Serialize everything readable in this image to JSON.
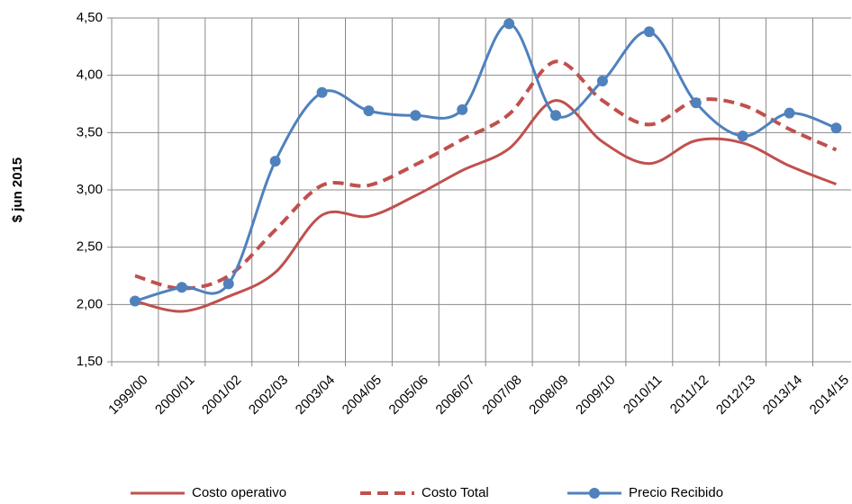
{
  "chart_data": {
    "type": "line",
    "y_label": "$ jun 2015",
    "categories": [
      "1999/00",
      "2000/01",
      "2001/02",
      "2002/03",
      "2003/04",
      "2004/05",
      "2005/06",
      "2006/07",
      "2007/08",
      "2008/09",
      "2009/10",
      "2010/11",
      "2011/12",
      "2012/13",
      "2013/14",
      "2014/15"
    ],
    "series": [
      {
        "name": "Costo operativo",
        "color": "#c0504d",
        "style": "solid",
        "marker": false,
        "values": [
          2.03,
          1.94,
          2.07,
          2.28,
          2.78,
          2.77,
          2.95,
          3.17,
          3.36,
          3.78,
          3.42,
          3.23,
          3.43,
          3.41,
          3.21,
          3.05
        ]
      },
      {
        "name": "Costo Total",
        "color": "#c0504d",
        "style": "dashed",
        "marker": false,
        "values": [
          2.25,
          2.14,
          2.25,
          2.65,
          3.04,
          3.04,
          3.22,
          3.44,
          3.66,
          4.12,
          3.78,
          3.57,
          3.78,
          3.74,
          3.53,
          3.35
        ]
      },
      {
        "name": "Precio Recibido",
        "color": "#4f81bd",
        "style": "solid",
        "marker": true,
        "values": [
          2.03,
          2.15,
          2.18,
          3.25,
          3.85,
          3.69,
          3.65,
          3.7,
          4.45,
          3.65,
          3.95,
          4.38,
          3.76,
          3.47,
          3.67,
          3.54
        ]
      }
    ],
    "ylim": [
      1.5,
      4.5
    ],
    "yticks": [
      {
        "value": 1.5,
        "label": "1,50"
      },
      {
        "value": 2,
        "label": "2,00"
      },
      {
        "value": 2.5,
        "label": "2,50"
      },
      {
        "value": 3,
        "label": "3,00"
      },
      {
        "value": 3.5,
        "label": "3,50"
      },
      {
        "value": 4,
        "label": "4,00"
      },
      {
        "value": 4.5,
        "label": "4,50"
      }
    ],
    "grid": true,
    "smooth": true,
    "legend": "bottom"
  }
}
